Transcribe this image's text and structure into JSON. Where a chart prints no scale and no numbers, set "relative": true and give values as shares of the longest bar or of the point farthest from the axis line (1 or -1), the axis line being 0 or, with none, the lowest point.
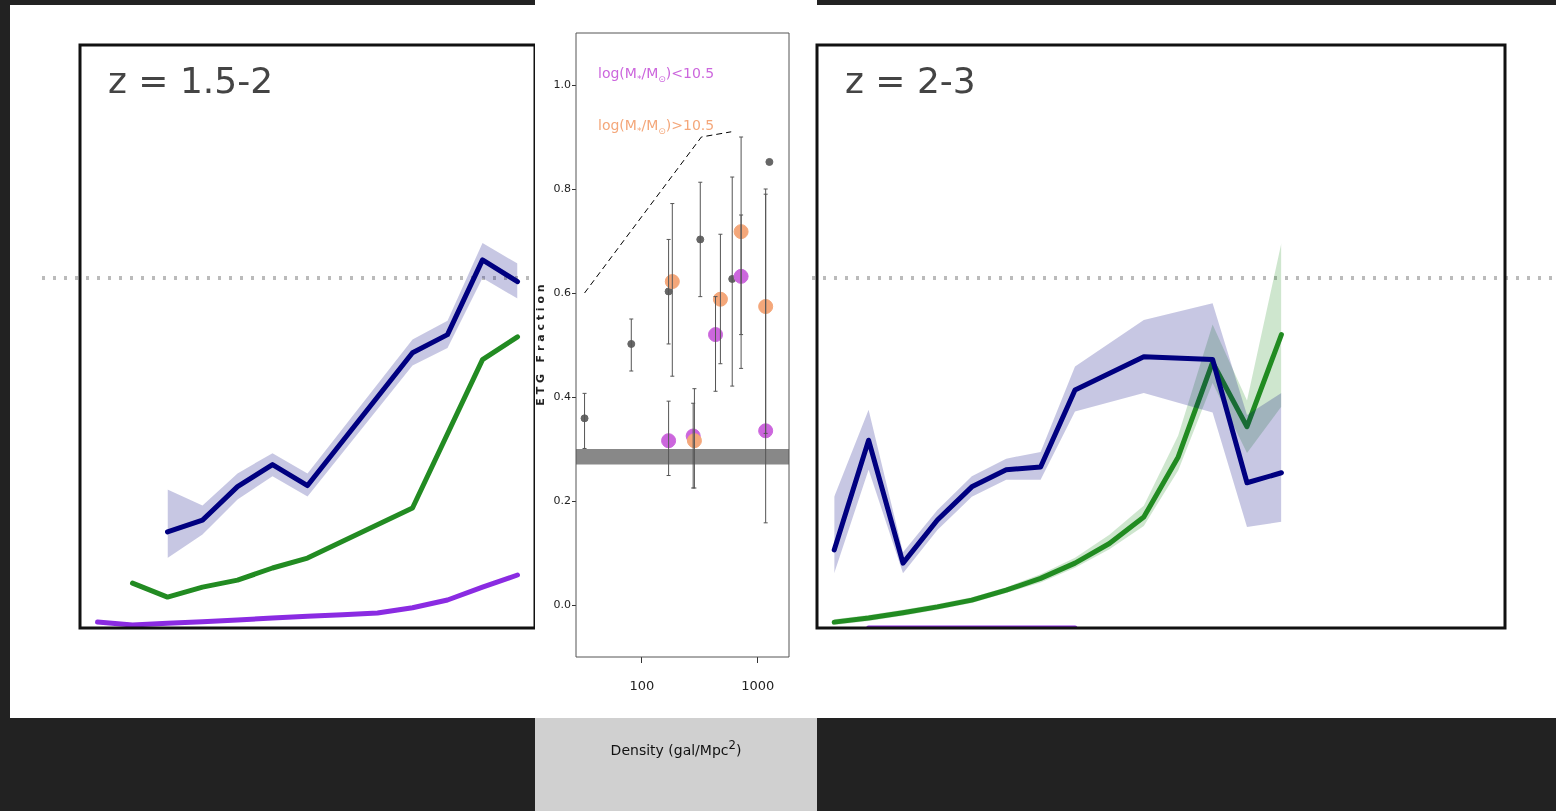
{
  "chart_data": [
    {
      "type": "line",
      "title": "z = 1.5-2",
      "relative": true,
      "categories": [
        null,
        null,
        null,
        null,
        null,
        null,
        null,
        null,
        null,
        null,
        null,
        null,
        null
      ],
      "marker": "none",
      "line_style": "solid",
      "ref_lines": [
        {
          "axis": "y",
          "value": 0.951,
          "color": "#bbbbbb",
          "line_style": "dotted"
        }
      ],
      "series": [
        {
          "color": "#000080",
          "values": [
            null,
            null,
            0.261,
            0.293,
            0.384,
            0.444,
            0.387,
            null,
            null,
            0.748,
            0.797,
            1,
            0.941
          ],
          "lower": [
            null,
            null,
            0.19,
            0.254,
            0.349,
            0.412,
            0.357,
            null,
            null,
            0.713,
            0.761,
            0.951,
            0.895
          ],
          "upper": [
            null,
            null,
            0.376,
            0.333,
            0.42,
            0.475,
            0.42,
            null,
            null,
            0.784,
            0.835,
            1.046,
            0.99
          ]
        },
        {
          "color": "#228b22",
          "values": [
            null,
            0.122,
            0.084,
            0.111,
            0.13,
            0.163,
            0.19,
            null,
            null,
            0.326,
            null,
            0.729,
            0.791
          ]
        },
        {
          "color": "#8a2be2",
          "values": [
            0.016,
            0.008,
            0.013,
            0.017,
            0.022,
            0.027,
            0.032,
            0.036,
            0.041,
            0.055,
            0.076,
            0.111,
            0.144
          ]
        }
      ]
    },
    {
      "type": "scatter",
      "xlabel": "Density (gal/Mpc$^{2}$)",
      "ylabel": "E T G   F r a c t i o n",
      "log": "x",
      "xlim": [
        27,
        1860
      ],
      "xticks": [
        100,
        1000
      ],
      "ylim": [
        -0.1,
        1.1
      ],
      "yticks": [
        {
          "value": 0,
          "label": "0.0"
        },
        {
          "value": 0.2,
          "label": "0.2"
        },
        {
          "value": 0.4,
          "label": "0.4"
        },
        {
          "value": 0.6,
          "label": "0.6"
        },
        {
          "value": 0.8,
          "label": "0.8"
        },
        {
          "value": 1,
          "label": "1.0"
        }
      ],
      "marker": "circle",
      "legend": "top left",
      "bands": [
        {
          "axis": "y",
          "from": 0.27,
          "to": 0.3,
          "color": "#888888"
        }
      ],
      "series": [
        {
          "type": "line",
          "marker": "none",
          "line_style": "dashed",
          "color": "#000000",
          "x": [
            32,
            326,
            590
          ],
          "values": [
            0.6,
            0.9,
            0.91
          ]
        },
        {
          "color": "#666666",
          "x": [
            32,
            81,
            170,
            319,
            602,
            1260
          ],
          "values": [
            0.359,
            0.502,
            0.603,
            0.703,
            0.627,
            0.852
          ],
          "errors": [
            [
              0.301,
              0.407
            ],
            [
              0.45,
              0.55
            ],
            [
              0.502,
              0.703
            ],
            [
              0.593,
              0.813
            ],
            [
              0.421,
              0.823
            ],
            null
          ]
        },
        {
          "name": "log(M$_{*}$/M$_{⊙}$)<10.5",
          "color": "#cc66dd",
          "x": [
            170,
            277,
            432,
            718,
            1170
          ],
          "values": [
            0.316,
            0.325,
            0.52,
            0.632,
            0.335
          ],
          "errors": [
            [
              0.249,
              0.392
            ],
            [
              0.225,
              0.388
            ],
            [
              0.411,
              0.593
            ],
            [
              0.52,
              0.75
            ],
            [
              0.158,
              0.8
            ]
          ]
        },
        {
          "name": "log(M$_{*}$/M$_{⊙}$)>10.5",
          "color": "#f4a77a",
          "x": [
            183,
            284,
            476,
            718,
            1170
          ],
          "values": [
            0.622,
            0.316,
            0.588,
            0.718,
            0.574
          ],
          "errors": [
            [
              0.44,
              0.772
            ],
            [
              0.225,
              0.416
            ],
            [
              0.464,
              0.713
            ],
            [
              0.455,
              0.9
            ],
            [
              0.33,
              0.79
            ]
          ]
        }
      ]
    },
    {
      "type": "line",
      "title": "z = 2-3",
      "relative": true,
      "categories": [
        null,
        null,
        null,
        null,
        null,
        null,
        null,
        null,
        null,
        null,
        null,
        null,
        null,
        null,
        null,
        null,
        null,
        null,
        null,
        null
      ],
      "marker": "none",
      "line_style": "solid",
      "ref_lines": [
        {
          "axis": "y",
          "value": 1.193,
          "color": "#bbbbbb",
          "line_style": "dotted"
        }
      ],
      "series": [
        {
          "color": "#000080",
          "values": [
            0.266,
            0.64,
            0.221,
            0.368,
            0.481,
            0.539,
            0.549,
            0.811,
            null,
            0.924,
            null,
            0.915,
            0.495,
            0.529,
            null,
            null,
            null,
            null,
            null,
            null
          ],
          "lower": [
            0.187,
            0.539,
            0.187,
            0.334,
            0.447,
            0.505,
            0.505,
            0.738,
            null,
            0.801,
            null,
            0.734,
            0.344,
            0.362,
            null,
            null,
            null,
            null,
            null,
            null
          ],
          "upper": [
            0.447,
            0.744,
            0.258,
            0.402,
            0.517,
            0.577,
            0.6,
            0.891,
            null,
            1.05,
            null,
            1.107,
            0.726,
            0.801,
            null,
            null,
            null,
            null,
            null,
            null
          ]
        },
        {
          "color": "#228b22",
          "values": [
            0.02,
            0.034,
            0.052,
            0.072,
            0.095,
            0.129,
            0.169,
            0.221,
            0.288,
            0.378,
            0.583,
            0.905,
            0.686,
            1,
            null,
            null,
            null,
            null,
            null,
            null
          ],
          "lower": [
            0.01,
            0.024,
            0.042,
            0.062,
            0.085,
            0.119,
            0.155,
            0.205,
            0.268,
            0.348,
            0.537,
            0.835,
            0.596,
            0.755,
            null,
            null,
            null,
            null,
            null,
            null
          ],
          "upper": [
            0.03,
            0.044,
            0.062,
            0.082,
            0.105,
            0.139,
            0.183,
            0.239,
            0.318,
            0.417,
            0.656,
            1.034,
            0.775,
            1.312,
            null,
            null,
            null,
            null,
            null,
            null
          ]
        },
        {
          "color": "#8a2be2",
          "values": [
            null,
            0,
            0,
            0,
            0,
            0,
            0,
            0,
            null,
            null,
            null,
            null,
            null,
            null,
            null,
            null,
            null,
            null,
            null,
            null
          ]
        }
      ]
    }
  ]
}
